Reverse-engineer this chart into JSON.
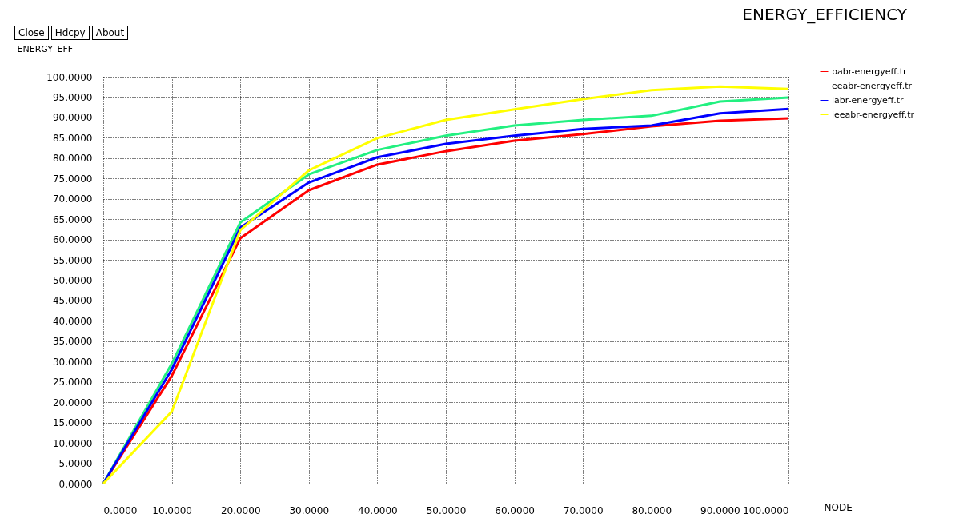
{
  "chart_data": {
    "type": "line",
    "title": "ENERGY_EFFICIENCY",
    "xlabel": "NODE",
    "ylabel": "ENERGY_EFF",
    "annotations": [
      "Close",
      "Hdcpy",
      "About"
    ],
    "x": [
      0,
      10,
      20,
      30,
      40,
      50,
      60,
      70,
      80,
      90,
      100
    ],
    "series": [
      {
        "name": "babr-energyeff.tr",
        "color": "#ff0000",
        "values": [
          0,
          26.5,
          60.3,
          72.1,
          78.4,
          81.7,
          84.3,
          85.9,
          87.8,
          89.2,
          89.8
        ]
      },
      {
        "name": "eeabr-energyeff.tr",
        "color": "#22f080",
        "values": [
          0,
          29.5,
          64.2,
          76,
          82,
          85.5,
          88,
          89.4,
          90.4,
          93.9,
          94.9
        ]
      },
      {
        "name": "iabr-energyeff.tr",
        "color": "#0000ff",
        "values": [
          0,
          28.1,
          62.9,
          74,
          80.2,
          83.5,
          85.5,
          87.2,
          88,
          91,
          92.1
        ]
      },
      {
        "name": "ieeabr-energyeff.tr",
        "color": "#ffff00",
        "values": [
          0,
          17.7,
          62.3,
          77,
          84.9,
          89.4,
          92,
          94.5,
          96.7,
          97.6,
          97
        ]
      }
    ],
    "xlim": [
      0,
      100
    ],
    "ylim": [
      0,
      100
    ],
    "xticks": [
      {
        "value": 0,
        "label": "0.0000"
      },
      {
        "value": 10,
        "label": "10.0000"
      },
      {
        "value": 20,
        "label": "20.0000"
      },
      {
        "value": 30,
        "label": "30.0000"
      },
      {
        "value": 40,
        "label": "40.0000"
      },
      {
        "value": 50,
        "label": "50.0000"
      },
      {
        "value": 60,
        "label": "60.0000"
      },
      {
        "value": 70,
        "label": "70.0000"
      },
      {
        "value": 80,
        "label": "80.0000"
      },
      {
        "value": 90,
        "label": "90.0000"
      },
      {
        "value": 100,
        "label": "100.0000"
      }
    ],
    "yticks": [
      {
        "value": 0,
        "label": "0.0000"
      },
      {
        "value": 5,
        "label": "5.0000"
      },
      {
        "value": 10,
        "label": "10.0000"
      },
      {
        "value": 15,
        "label": "15.0000"
      },
      {
        "value": 20,
        "label": "20.0000"
      },
      {
        "value": 25,
        "label": "25.0000"
      },
      {
        "value": 30,
        "label": "30.0000"
      },
      {
        "value": 35,
        "label": "35.0000"
      },
      {
        "value": 40,
        "label": "40.0000"
      },
      {
        "value": 45,
        "label": "45.0000"
      },
      {
        "value": 50,
        "label": "50.0000"
      },
      {
        "value": 55,
        "label": "55.0000"
      },
      {
        "value": 60,
        "label": "60.0000"
      },
      {
        "value": 65,
        "label": "65.0000"
      },
      {
        "value": 70,
        "label": "70.0000"
      },
      {
        "value": 75,
        "label": "75.0000"
      },
      {
        "value": 80,
        "label": "80.0000"
      },
      {
        "value": 85,
        "label": "85.0000"
      },
      {
        "value": 90,
        "label": "90.0000"
      },
      {
        "value": 95,
        "label": "95.0000"
      },
      {
        "value": 100,
        "label": "100.0000"
      }
    ],
    "grid": true,
    "legend": "top right",
    "marker": "none",
    "line_style": "solid"
  }
}
